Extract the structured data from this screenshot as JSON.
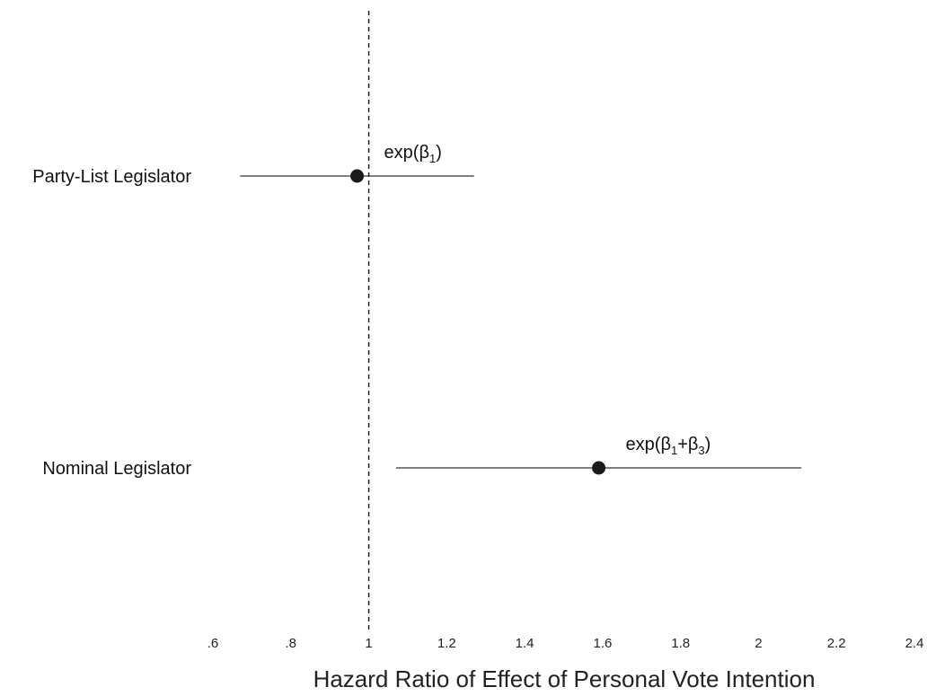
{
  "chart_data": {
    "type": "scatter",
    "xlabel": "Hazard Ratio of Effect of Personal Vote Intention",
    "xlim": [
      0.6,
      2.4
    ],
    "ticks": [
      {
        "value": 0.6,
        "label": ".6"
      },
      {
        "value": 0.8,
        "label": ".8"
      },
      {
        "value": 1.0,
        "label": "1"
      },
      {
        "value": 1.2,
        "label": "1.2"
      },
      {
        "value": 1.4,
        "label": "1.4"
      },
      {
        "value": 1.6,
        "label": "1.6"
      },
      {
        "value": 1.8,
        "label": "1.8"
      },
      {
        "value": 2.0,
        "label": "2"
      },
      {
        "value": 2.2,
        "label": "2.2"
      },
      {
        "value": 2.4,
        "label": "2.4"
      }
    ],
    "reference_line": 1.0,
    "grid": false,
    "points": [
      {
        "category": "Party-List Legislator",
        "estimate": 0.97,
        "ci_low": 0.67,
        "ci_high": 1.27,
        "annotation": {
          "pre": "exp(β",
          "sub1": "1",
          "mid": "",
          "sub2": "",
          "post": ")"
        }
      },
      {
        "category": "Nominal Legislator",
        "estimate": 1.59,
        "ci_low": 1.07,
        "ci_high": 2.11,
        "annotation": {
          "pre": "exp(β",
          "sub1": "1",
          "mid": "+β",
          "sub2": "3",
          "post": ")"
        }
      }
    ]
  },
  "colors": {
    "marker": "#1a1a1a",
    "line": "#333333"
  }
}
